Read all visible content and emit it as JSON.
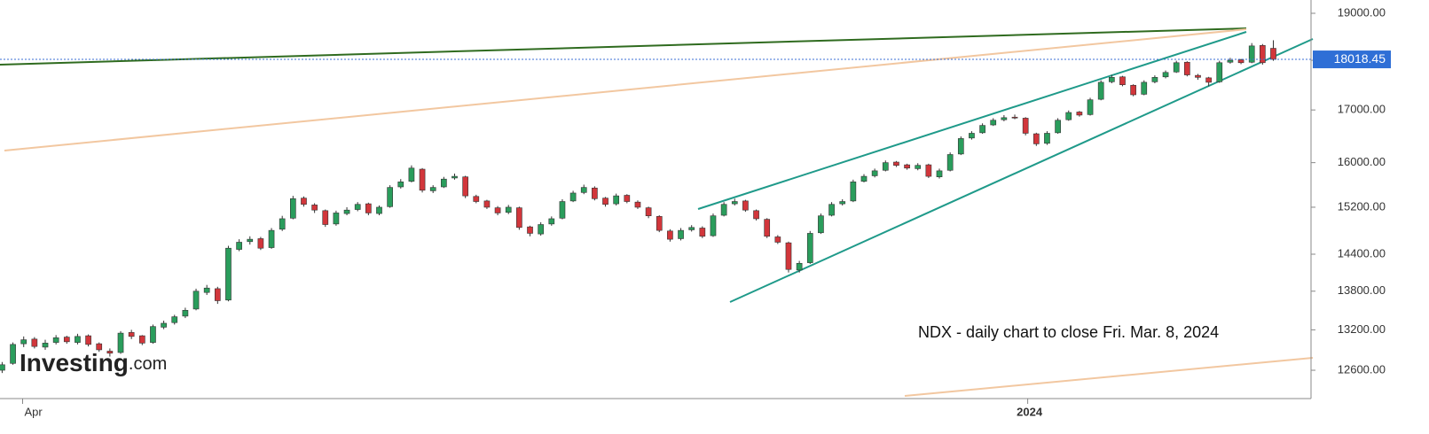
{
  "chart_data": {
    "type": "candlestick",
    "annotation": "NDX - daily chart to close Fri. Mar. 8, 2024",
    "logo": {
      "name": "Investing",
      "suffix": ".com"
    },
    "up_color": "#2a9d5c",
    "down_color": "#d2363b",
    "log_scale": true,
    "ylim": [
      12196,
      19293
    ],
    "yticks": [
      {
        "value": 12600,
        "label": "12600.00"
      },
      {
        "value": 13200,
        "label": "13200.00"
      },
      {
        "value": 13800,
        "label": "13800.00"
      },
      {
        "value": 14400,
        "label": "14400.00"
      },
      {
        "value": 15200,
        "label": "15200.00"
      },
      {
        "value": 16000,
        "label": "16000.00"
      },
      {
        "value": 17000,
        "label": "17000.00"
      },
      {
        "value": 18000,
        "label": "18000.00"
      },
      {
        "value": 19000,
        "label": "19000.00"
      }
    ],
    "xlim": [
      -0.2,
      121.5
    ],
    "xticks": [
      {
        "value": 1.9,
        "label": "Apr"
      },
      {
        "value": 95.2,
        "label": "2024"
      }
    ],
    "last_price": 18018.45,
    "candles": [
      [
        12600,
        12720,
        12560,
        12680
      ],
      [
        12700,
        13010,
        12680,
        12980
      ],
      [
        12990,
        13100,
        12940,
        13050
      ],
      [
        13060,
        13090,
        12920,
        12950
      ],
      [
        12940,
        13050,
        12900,
        13000
      ],
      [
        13010,
        13120,
        12980,
        13080
      ],
      [
        13090,
        13110,
        12990,
        13020
      ],
      [
        13010,
        13140,
        12980,
        13100
      ],
      [
        13110,
        13130,
        12950,
        12980
      ],
      [
        12990,
        13010,
        12870,
        12900
      ],
      [
        12880,
        12920,
        12800,
        12850
      ],
      [
        12860,
        13180,
        12840,
        13150
      ],
      [
        13160,
        13200,
        13060,
        13100
      ],
      [
        13110,
        13120,
        12970,
        13000
      ],
      [
        13010,
        13280,
        12990,
        13250
      ],
      [
        13240,
        13340,
        13210,
        13300
      ],
      [
        13310,
        13430,
        13280,
        13400
      ],
      [
        13410,
        13540,
        13380,
        13500
      ],
      [
        13520,
        13840,
        13500,
        13800
      ],
      [
        13780,
        13900,
        13740,
        13850
      ],
      [
        13840,
        13870,
        13600,
        13650
      ],
      [
        13660,
        14540,
        13640,
        14500
      ],
      [
        14480,
        14650,
        14450,
        14600
      ],
      [
        14610,
        14700,
        14560,
        14650
      ],
      [
        14660,
        14690,
        14470,
        14500
      ],
      [
        14510,
        14840,
        14490,
        14800
      ],
      [
        14820,
        15050,
        14790,
        15000
      ],
      [
        15010,
        15400,
        14990,
        15350
      ],
      [
        15360,
        15390,
        15210,
        15250
      ],
      [
        15240,
        15270,
        15100,
        15150
      ],
      [
        15140,
        15160,
        14860,
        14900
      ],
      [
        14910,
        15140,
        14880,
        15100
      ],
      [
        15090,
        15200,
        15060,
        15150
      ],
      [
        15160,
        15290,
        15130,
        15250
      ],
      [
        15260,
        15280,
        15060,
        15100
      ],
      [
        15090,
        15230,
        15060,
        15200
      ],
      [
        15210,
        15590,
        15190,
        15550
      ],
      [
        15560,
        15700,
        15530,
        15650
      ],
      [
        15660,
        15950,
        15640,
        15900
      ],
      [
        15880,
        15900,
        15460,
        15500
      ],
      [
        15490,
        15590,
        15450,
        15550
      ],
      [
        15560,
        15740,
        15540,
        15700
      ],
      [
        15720,
        15800,
        15690,
        15750
      ],
      [
        15740,
        15760,
        15360,
        15400
      ],
      [
        15390,
        15420,
        15270,
        15300
      ],
      [
        15310,
        15330,
        15170,
        15200
      ],
      [
        15190,
        15220,
        15060,
        15100
      ],
      [
        15110,
        15240,
        15080,
        15200
      ],
      [
        15190,
        15210,
        14810,
        14850
      ],
      [
        14860,
        14880,
        14700,
        14750
      ],
      [
        14740,
        14940,
        14710,
        14900
      ],
      [
        14910,
        15040,
        14880,
        15000
      ],
      [
        15010,
        15340,
        14990,
        15300
      ],
      [
        15310,
        15490,
        15290,
        15450
      ],
      [
        15460,
        15600,
        15430,
        15550
      ],
      [
        15540,
        15570,
        15320,
        15350
      ],
      [
        15360,
        15380,
        15210,
        15250
      ],
      [
        15260,
        15440,
        15230,
        15400
      ],
      [
        15410,
        15430,
        15270,
        15300
      ],
      [
        15290,
        15320,
        15170,
        15200
      ],
      [
        15190,
        15210,
        15010,
        15050
      ],
      [
        15040,
        15060,
        14770,
        14800
      ],
      [
        14790,
        14820,
        14610,
        14650
      ],
      [
        14660,
        14840,
        14630,
        14800
      ],
      [
        14810,
        14890,
        14780,
        14850
      ],
      [
        14840,
        14870,
        14670,
        14700
      ],
      [
        14710,
        15090,
        14690,
        15050
      ],
      [
        15060,
        15290,
        15040,
        15250
      ],
      [
        15260,
        15350,
        15230,
        15300
      ],
      [
        15310,
        15330,
        15120,
        15150
      ],
      [
        15140,
        15160,
        14970,
        15000
      ],
      [
        14990,
        15010,
        14670,
        14700
      ],
      [
        14690,
        14720,
        14570,
        14600
      ],
      [
        14590,
        14610,
        14100,
        14150
      ],
      [
        14140,
        14290,
        14100,
        14250
      ],
      [
        14260,
        14790,
        14240,
        14750
      ],
      [
        14760,
        15090,
        14740,
        15050
      ],
      [
        15060,
        15290,
        15040,
        15250
      ],
      [
        15260,
        15340,
        15230,
        15300
      ],
      [
        15310,
        15690,
        15290,
        15650
      ],
      [
        15660,
        15790,
        15640,
        15750
      ],
      [
        15760,
        15890,
        15730,
        15850
      ],
      [
        15860,
        16040,
        15840,
        16000
      ],
      [
        16010,
        16030,
        15920,
        15950
      ],
      [
        15960,
        15980,
        15870,
        15900
      ],
      [
        15890,
        15990,
        15860,
        15950
      ],
      [
        15960,
        15980,
        15720,
        15750
      ],
      [
        15740,
        15890,
        15710,
        15850
      ],
      [
        15860,
        16190,
        15840,
        16150
      ],
      [
        16160,
        16490,
        16140,
        16450
      ],
      [
        16460,
        16590,
        16430,
        16550
      ],
      [
        16560,
        16740,
        16540,
        16700
      ],
      [
        16710,
        16840,
        16690,
        16800
      ],
      [
        16810,
        16900,
        16780,
        16850
      ],
      [
        16860,
        16910,
        16820,
        16850
      ],
      [
        16840,
        16860,
        16510,
        16550
      ],
      [
        16540,
        16560,
        16310,
        16350
      ],
      [
        16360,
        16590,
        16330,
        16550
      ],
      [
        16560,
        16840,
        16540,
        16800
      ],
      [
        16810,
        16990,
        16790,
        16950
      ],
      [
        16960,
        16980,
        16870,
        16900
      ],
      [
        16910,
        17240,
        16890,
        17200
      ],
      [
        17210,
        17590,
        17190,
        17550
      ],
      [
        17560,
        17700,
        17530,
        17650
      ],
      [
        17660,
        17680,
        17470,
        17500
      ],
      [
        17490,
        17510,
        17270,
        17300
      ],
      [
        17310,
        17590,
        17290,
        17550
      ],
      [
        17560,
        17690,
        17530,
        17650
      ],
      [
        17660,
        17790,
        17630,
        17750
      ],
      [
        17760,
        17990,
        17740,
        17950
      ],
      [
        17960,
        17980,
        17670,
        17700
      ],
      [
        17690,
        17720,
        17600,
        17650
      ],
      [
        17640,
        17660,
        17470,
        17550
      ],
      [
        17560,
        17990,
        17540,
        17950
      ],
      [
        17960,
        18050,
        17930,
        18000
      ],
      [
        18010,
        18030,
        17920,
        17950
      ],
      [
        17960,
        18360,
        17940,
        18300
      ],
      [
        18310,
        18340,
        17910,
        17950
      ],
      [
        18250,
        18420,
        17990,
        18018.45
      ]
    ]
  }
}
